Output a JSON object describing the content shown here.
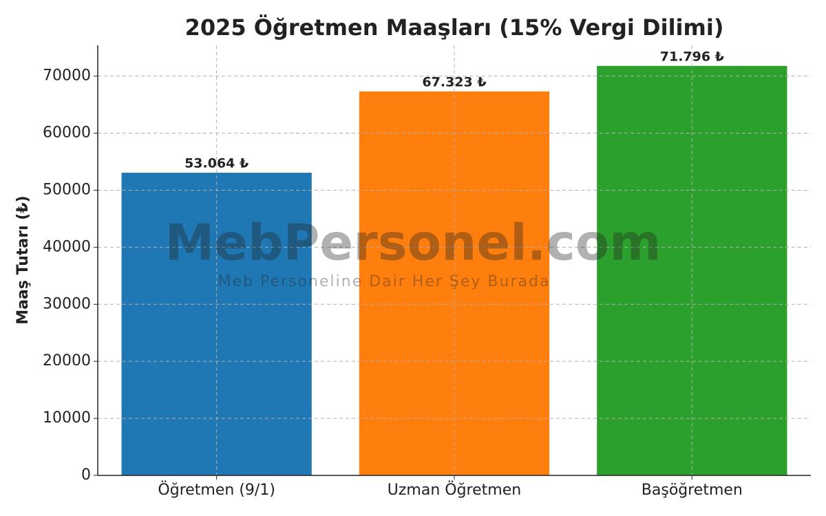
{
  "chart_data": {
    "type": "bar",
    "title": "2025 Öğretmen Maaşları (15% Vergi Dilimi)",
    "y_label": "Maaş Tutarı (₺)",
    "categories": [
      "Öğretmen (9/1)",
      "Uzman Öğretmen",
      "Başöğretmen"
    ],
    "values": [
      53064,
      67323,
      71796
    ],
    "value_labels": [
      "53.064 ₺",
      "67.323 ₺",
      "71.796 ₺"
    ],
    "colors": [
      "#1f77b4",
      "#ff7f0e",
      "#2ca02c"
    ],
    "ylim": [
      0,
      75386
    ],
    "yticks": [
      0,
      10000,
      20000,
      30000,
      40000,
      50000,
      60000,
      70000
    ],
    "grid": true,
    "watermark": [
      "MebPersonel.com",
      "Meb Personeline Dair Her Şey Burada"
    ]
  }
}
